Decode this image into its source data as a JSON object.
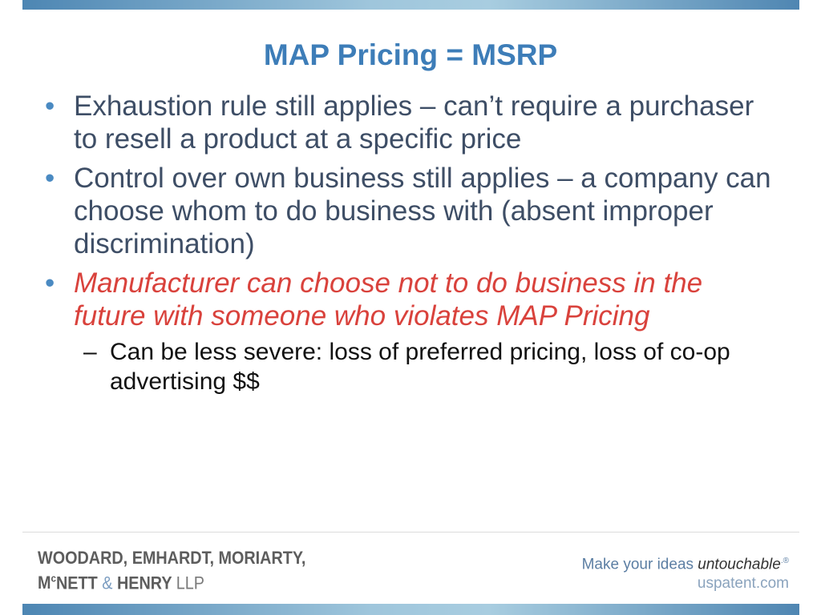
{
  "slide": {
    "title": "MAP Pricing = MSRP",
    "bullets": [
      {
        "text": "Exhaustion rule still applies – can’t require a purchaser to resell a product at a specific price",
        "style": "normal"
      },
      {
        "text": "Control over own business still applies – a company can choose whom to do business with (absent improper discrimination)",
        "style": "normal"
      },
      {
        "text": "Manufacturer can choose not to do business in the future with someone who violates MAP Pricing",
        "style": "emphasis",
        "color": "#d9423c"
      }
    ],
    "sub_bullets": [
      {
        "text": "Can be less severe: loss of preferred pricing, loss of co-op advertising $$"
      }
    ],
    "bullet_marker": "•",
    "sub_marker": "–"
  },
  "footer": {
    "logo_line1": "WOODARD, EMHARDT, MORIARTY,",
    "logo_mc_m": "M",
    "logo_mc_c": "c",
    "logo_nett": "NETT",
    "logo_amp": "&",
    "logo_henry": "HENRY",
    "logo_llp": "LLP",
    "tagline_start": "Make your ideas ",
    "tagline_emphasis": "untouchable",
    "tagline_reg": ".®",
    "website": "uspatent.com"
  },
  "colors": {
    "title": "#3d7db8",
    "body_text": "#3e4e66",
    "emphasis": "#d9423c",
    "bar": "#4d86b3"
  }
}
